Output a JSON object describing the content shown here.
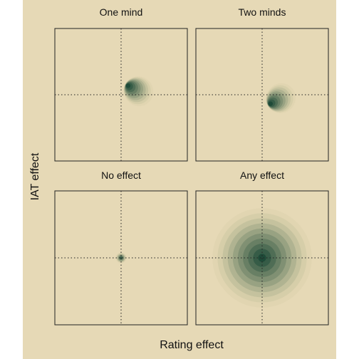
{
  "chart_data": {
    "type": "density-grid",
    "xlabel": "Rating effect",
    "ylabel": "IAT effect",
    "colors": {
      "background": "#e6d9b6",
      "panel": "#e6d9b6",
      "density_low": "#d8cfa8",
      "density_high": "#1e4a38"
    },
    "panels": [
      {
        "title": "One mind",
        "shape": "skewed",
        "center": [
          0.08,
          0.15
        ],
        "spread": [
          0.4,
          0.4
        ],
        "rotation": -30
      },
      {
        "title": "Two minds",
        "shape": "skewed",
        "center": [
          0.1,
          -0.15
        ],
        "spread": [
          0.4,
          0.4
        ],
        "rotation": 30
      },
      {
        "title": "No effect",
        "shape": "round",
        "center": [
          0.0,
          0.0
        ],
        "spread": [
          0.08,
          0.08
        ],
        "rotation": 0
      },
      {
        "title": "Any effect",
        "shape": "round",
        "center": [
          0.0,
          0.0
        ],
        "spread": [
          0.75,
          0.75
        ],
        "rotation": 0
      }
    ]
  }
}
